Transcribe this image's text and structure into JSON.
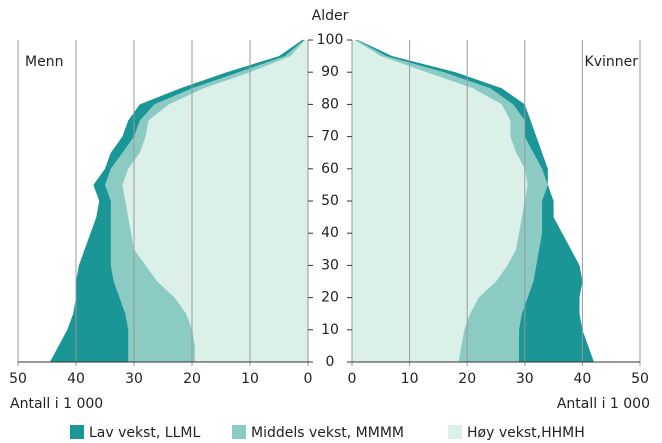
{
  "chart_data": {
    "type": "population-pyramid",
    "ylabel": "Alder",
    "x": [
      0,
      5,
      10,
      15,
      20,
      25,
      30,
      35,
      40,
      45,
      50,
      55,
      60,
      65,
      70,
      75,
      80,
      85,
      90,
      95,
      100
    ],
    "ylim": [
      0,
      100
    ],
    "yticks": [
      0,
      10,
      20,
      30,
      40,
      50,
      60,
      70,
      80,
      90,
      100
    ],
    "legend": [
      {
        "name": "Lav vekst, LLML",
        "color": "#1a9696"
      },
      {
        "name": "Middels vekst, MMMM",
        "color": "#8ccbc3"
      },
      {
        "name": "Høy vekst,HHMH",
        "color": "#dcf0ea"
      }
    ],
    "panels": [
      {
        "label": "Menn",
        "xlabel": "Antall i 1 000",
        "xlim": [
          0,
          50
        ],
        "xticks": [
          0,
          10,
          20,
          30,
          40,
          50
        ],
        "series": [
          {
            "values": [
              44.5,
              43,
              41.5,
              40.5,
              40,
              40,
              39.5,
              38.5,
              37.5,
              36.5,
              36,
              37,
              35,
              34,
              32,
              31,
              29,
              22,
              14,
              5,
              1
            ]
          },
          {
            "values": [
              31,
              31,
              31,
              31.5,
              32.5,
              33.5,
              34,
              34,
              34,
              34,
              34,
              35,
              34,
              32,
              30,
              29,
              26.5,
              20,
              12,
              4,
              0.7
            ]
          },
          {
            "values": [
              19.5,
              19.5,
              20,
              21,
              23,
              26,
              28,
              30,
              30.5,
              31,
              31.5,
              32,
              31,
              29,
              28,
              27.5,
              24,
              18,
              10,
              3,
              0.5
            ]
          }
        ]
      },
      {
        "label": "Kvinner",
        "xlabel": "Antall i 1 000",
        "xlim": [
          0,
          50
        ],
        "xticks": [
          0,
          10,
          20,
          30,
          40,
          50
        ],
        "series": [
          {
            "values": [
              42,
              41,
              40,
              39.5,
              39.5,
              40,
              39.5,
              38,
              36.5,
              35,
              35,
              34,
              34,
              33,
              32,
              31,
              30,
              26,
              18,
              7,
              1
            ]
          },
          {
            "values": [
              29,
              29,
              29,
              29.5,
              30.5,
              31.5,
              32,
              32.5,
              33,
              33,
              33,
              34,
              33,
              31.5,
              30,
              30,
              28,
              24,
              16,
              6,
              0.8
            ]
          },
          {
            "values": [
              18.5,
              19,
              19.5,
              20.5,
              22,
              25,
              27,
              28.5,
              29,
              29.5,
              30,
              30.5,
              30,
              28.5,
              27.5,
              27.5,
              26,
              21,
              13,
              5,
              0.5
            ]
          }
        ]
      }
    ]
  }
}
